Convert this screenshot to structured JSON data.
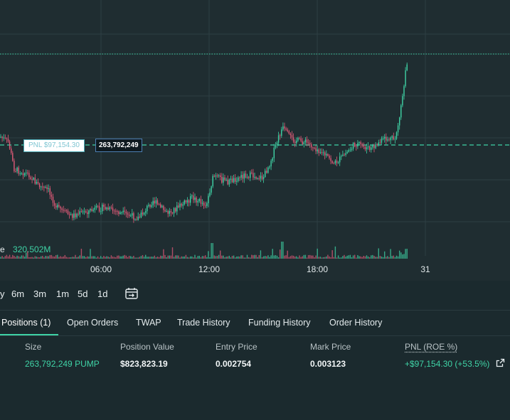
{
  "chart": {
    "pnl_tag": "PNL $97,154.30",
    "size_tag": "263,792,249",
    "volume_prefix": "e",
    "volume_value": "320.502M",
    "time_ticks": [
      "06:00",
      "12:00",
      "18:00",
      "31"
    ],
    "colors": {
      "up": "#3fd3a6",
      "down": "#e05a78",
      "grid": "#2e3f44"
    }
  },
  "ranges": [
    "y",
    "6m",
    "3m",
    "1m",
    "5d",
    "1d"
  ],
  "tabs": [
    "Positions (1)",
    "Open Orders",
    "TWAP",
    "Trade History",
    "Funding History",
    "Order History"
  ],
  "positions": {
    "headers": [
      "Size",
      "Position Value",
      "Entry Price",
      "Mark Price",
      "PNL (ROE %)"
    ],
    "row": {
      "size": "263,792,249 PUMP",
      "position_value": "$823,823.19",
      "entry_price": "0.002754",
      "mark_price": "0.003123",
      "pnl": "+$97,154.30 (+53.5%)"
    }
  }
}
